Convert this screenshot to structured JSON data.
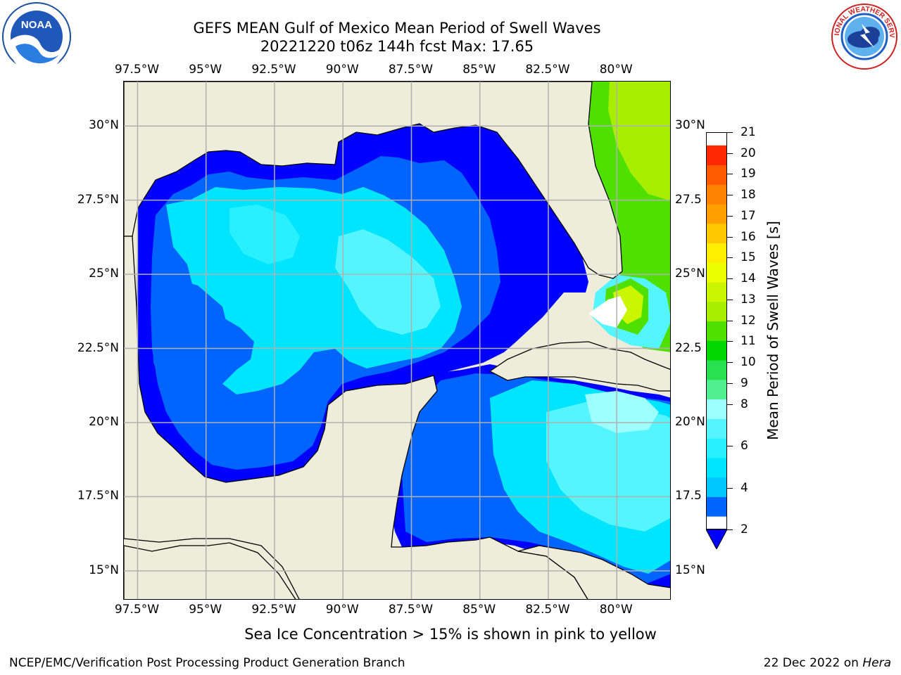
{
  "title": {
    "line1": "GEFS MEAN Gulf of Mexico Mean Period of Swell Waves",
    "line2": "20221220 t06z 144h fcst   Max: 17.65"
  },
  "logos": {
    "left": "noaa-logo",
    "left_text": "NOAA",
    "right": "nws-logo",
    "right_text": "NATIONAL WEATHER SERVICE"
  },
  "map": {
    "lon_range": [
      -98.0,
      -78.0
    ],
    "lat_range": [
      14.0,
      31.5
    ],
    "lon_ticks": [
      {
        "value": -97.5,
        "label": "97.5°W"
      },
      {
        "value": -95.0,
        "label": "95°W"
      },
      {
        "value": -92.5,
        "label": "92.5°W"
      },
      {
        "value": -90.0,
        "label": "90°W"
      },
      {
        "value": -87.5,
        "label": "87.5°W"
      },
      {
        "value": -85.0,
        "label": "85°W"
      },
      {
        "value": -82.5,
        "label": "82.5°W"
      },
      {
        "value": -80.0,
        "label": "80°W"
      }
    ],
    "lat_ticks": [
      {
        "value": 30.0,
        "label": "30°N",
        "right_label": "30°N"
      },
      {
        "value": 27.5,
        "label": "27.5°N",
        "right_label": "27.5"
      },
      {
        "value": 25.0,
        "label": "25°N",
        "right_label": "25°N"
      },
      {
        "value": 22.5,
        "label": "22.5°N",
        "right_label": "22.5"
      },
      {
        "value": 20.0,
        "label": "20°N",
        "right_label": "20°N"
      },
      {
        "value": 17.5,
        "label": "17.5°N",
        "right_label": "17.5"
      },
      {
        "value": 15.0,
        "label": "15°N",
        "right_label": "15°N"
      }
    ],
    "grid": true,
    "colors": {
      "land": "#eeecdb",
      "grid": "#b0b0b0",
      "coast": "#000000"
    }
  },
  "colorbar": {
    "title": "Mean Period of Swell Waves [s]",
    "levels": [
      2,
      3,
      4,
      5,
      6,
      7,
      8,
      9,
      10,
      11,
      12,
      13,
      14,
      15,
      16,
      17,
      18,
      19,
      20,
      21
    ],
    "tick_labels": [
      "2",
      "4",
      "6",
      "8",
      "9",
      "10",
      "11",
      "12",
      "13",
      "14",
      "15",
      "16",
      "17",
      "18",
      "19",
      "20",
      "21"
    ],
    "colors": [
      "#0065ff",
      "#00c8ff",
      "#00e5ff",
      "#28f0ff",
      "#55f5ff",
      "#9dffff",
      "#50f090",
      "#28e050",
      "#00d800",
      "#50e000",
      "#a8ee00",
      "#ccf500",
      "#eeff00",
      "#ffee00",
      "#ffc800",
      "#ffa000",
      "#ff8200",
      "#ff5a00",
      "#ff2800",
      "#ff0000"
    ],
    "extend_color": "#0000ff"
  },
  "notes": {
    "ice": "Sea Ice Concentration > 15% is shown in pink to yellow",
    "credit": "NCEP/EMC/Verification Post Processing Product Generation Branch",
    "date_prefix": "22 Dec 2022 on ",
    "machine": "Hera"
  }
}
